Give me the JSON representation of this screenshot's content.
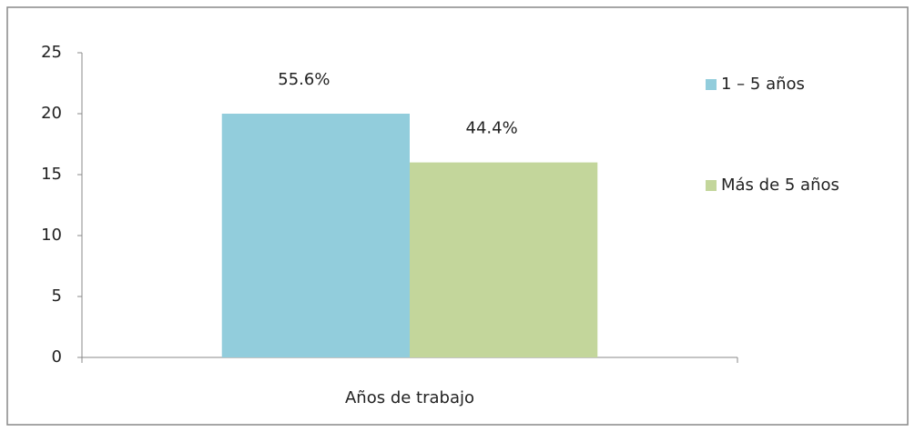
{
  "chart_data": {
    "type": "bar",
    "categories": [
      "Años de trabajo"
    ],
    "series": [
      {
        "name": "1 – 5 años",
        "color": "#92cddc",
        "values": [
          20
        ],
        "data_labels": [
          "55.6%"
        ]
      },
      {
        "name": "Más de 5 años",
        "color": "#c3d69b",
        "values": [
          16
        ],
        "data_labels": [
          "44.4%"
        ]
      }
    ],
    "ylim": [
      0,
      25
    ],
    "yticks": [
      0,
      5,
      10,
      15,
      20,
      25
    ],
    "grid": false,
    "legend": "right"
  }
}
